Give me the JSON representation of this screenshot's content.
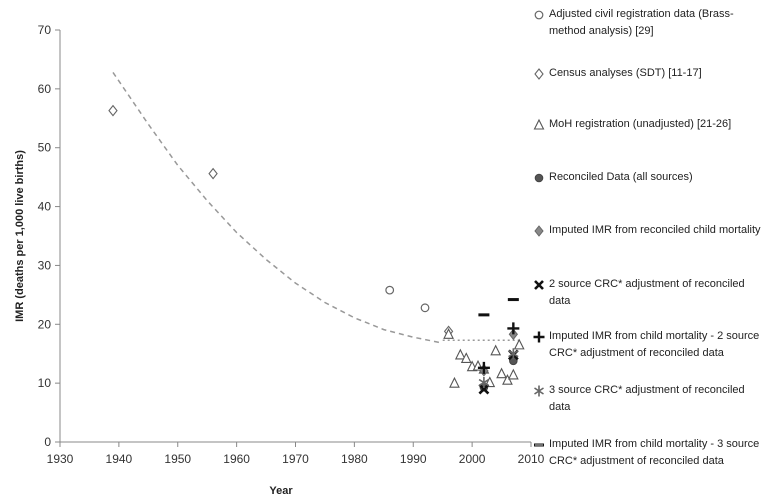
{
  "chart_data": {
    "type": "scatter",
    "xlabel": "Year",
    "ylabel": "IMR (deaths per 1,000 live births)",
    "xlim": [
      1930,
      2010
    ],
    "ylim": [
      0,
      70
    ],
    "xticks": [
      1930,
      1940,
      1950,
      1960,
      1970,
      1980,
      1990,
      2000,
      2010
    ],
    "yticks": [
      0,
      10,
      20,
      30,
      40,
      50,
      60,
      70
    ],
    "grid": false,
    "legend_position": "right",
    "series": [
      {
        "name": "Adjusted civil registration data (Brass-method analysis) [29]",
        "marker": "circle",
        "points": [
          [
            1986,
            25.8
          ],
          [
            1992,
            22.8
          ]
        ]
      },
      {
        "name": "Census analyses (SDT) [11-17]",
        "marker": "diamond",
        "points": [
          [
            1939,
            56.3
          ],
          [
            1956,
            45.6
          ],
          [
            1996,
            18.8
          ]
        ]
      },
      {
        "name": "MoH registration (unadjusted) [21-26]",
        "marker": "triangle",
        "points": [
          [
            1996,
            18.3
          ],
          [
            1997,
            10.0
          ],
          [
            1998,
            14.8
          ],
          [
            1999,
            14.2
          ],
          [
            2000,
            12.8
          ],
          [
            2001,
            12.9
          ],
          [
            2002,
            12.4
          ],
          [
            2003,
            10.1
          ],
          [
            2004,
            15.5
          ],
          [
            2005,
            11.6
          ],
          [
            2006,
            10.5
          ],
          [
            2007,
            11.4
          ],
          [
            2008,
            16.5
          ]
        ]
      },
      {
        "name": "Reconciled Data (all sources)",
        "marker": "filled-circle",
        "points": [
          [
            2002,
            9.3
          ],
          [
            2007,
            13.8
          ]
        ]
      },
      {
        "name": "Imputed IMR from reconciled child mortality",
        "marker": "filled-diamond",
        "points": [
          [
            2002,
            12.1
          ],
          [
            2007,
            18.3
          ]
        ]
      },
      {
        "name": "2 source CRC* adjustment of reconciled data",
        "marker": "x",
        "points": [
          [
            2002,
            9.0
          ],
          [
            2007,
            14.8
          ]
        ]
      },
      {
        "name": "Imputed IMR from child mortality - 2 source CRC* adjustment of reconciled data",
        "marker": "plus",
        "points": [
          [
            2002,
            12.6
          ],
          [
            2007,
            19.3
          ]
        ]
      },
      {
        "name": "3 source CRC* adjustment of reconciled data",
        "marker": "asterisk",
        "points": [
          [
            2002,
            10.1
          ],
          [
            2007,
            15.0
          ]
        ]
      },
      {
        "name": "Imputed IMR from child mortality - 3 source CRC* adjustment of reconciled data",
        "marker": "dash",
        "points": [
          [
            2002,
            21.6
          ],
          [
            2007,
            24.2
          ]
        ]
      }
    ],
    "trend_lines": [
      {
        "style": "dashed",
        "color": "#999999",
        "points": [
          [
            1939,
            62.8
          ],
          [
            1945,
            54.0
          ],
          [
            1950,
            47.0
          ],
          [
            1955,
            41.0
          ],
          [
            1960,
            35.6
          ],
          [
            1965,
            31.0
          ],
          [
            1970,
            27.0
          ],
          [
            1975,
            23.7
          ],
          [
            1980,
            21.1
          ],
          [
            1985,
            19.1
          ],
          [
            1990,
            17.8
          ],
          [
            1995,
            16.8
          ]
        ]
      },
      {
        "style": "dotted",
        "color": "#999999",
        "points": [
          [
            1995,
            17.3
          ],
          [
            2008,
            17.3
          ]
        ]
      }
    ]
  }
}
